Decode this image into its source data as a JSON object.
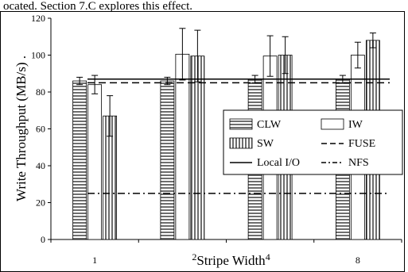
{
  "page_text": {
    "top_caption": "ocated. Section 7.C explores this effect."
  },
  "chart_data": {
    "type": "bar",
    "title": "",
    "xlabel": "Stripe Width",
    "ylabel": "Write Throughput (MB/s) .",
    "categories": [
      "1",
      "2",
      "4",
      "8"
    ],
    "ylim": [
      0,
      120
    ],
    "yticks": [
      0,
      20,
      40,
      60,
      80,
      100,
      120
    ],
    "grid": false,
    "legend_position": "right",
    "series": [
      {
        "name": "CLW",
        "pattern": "horizontal-stripes",
        "values": [
          86,
          86,
          87,
          87
        ],
        "errors": [
          2,
          2,
          2,
          2
        ]
      },
      {
        "name": "IW",
        "pattern": "white",
        "values": [
          84,
          100.5,
          99.5,
          100
        ],
        "errors": [
          5,
          14,
          11,
          7
        ]
      },
      {
        "name": "SW",
        "pattern": "vertical-stripes",
        "values": [
          67,
          99.5,
          100,
          108
        ],
        "errors": [
          11,
          14,
          10,
          4
        ]
      }
    ],
    "reference_lines": [
      {
        "name": "Local I/O",
        "style": "solid",
        "value": 87
      },
      {
        "name": "FUSE",
        "style": "dashed",
        "value": 85
      },
      {
        "name": "NFS",
        "style": "dash-dot",
        "value": 25
      }
    ],
    "colors": {
      "axis": "#000000",
      "bar_fill": "#ffffff",
      "stripe": "#7a7a7a"
    }
  }
}
